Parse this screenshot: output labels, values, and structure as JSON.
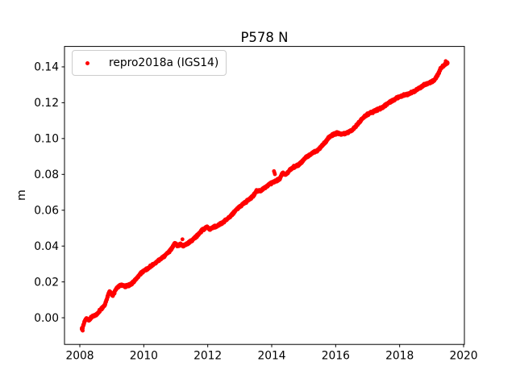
{
  "figure": {
    "title": "P578 N",
    "background": "#ffffff",
    "text_color": "#000000",
    "legend_border_color": "#cccccc"
  },
  "chart_data": {
    "type": "scatter",
    "title": "P578 N",
    "xlabel": "",
    "ylabel": "m",
    "grid": false,
    "legend_position": "upper left",
    "xlim": [
      2007.521,
      2020.025
    ],
    "ylim": [
      -0.01489,
      0.1514
    ],
    "xticks": [
      {
        "value": 2008,
        "label": "2008"
      },
      {
        "value": 2010,
        "label": "2010"
      },
      {
        "value": 2012,
        "label": "2012"
      },
      {
        "value": 2014,
        "label": "2014"
      },
      {
        "value": 2016,
        "label": "2016"
      },
      {
        "value": 2018,
        "label": "2018"
      },
      {
        "value": 2020,
        "label": "2020"
      }
    ],
    "yticks": [
      {
        "value": 0.0,
        "label": "0.00"
      },
      {
        "value": 0.02,
        "label": "0.02"
      },
      {
        "value": 0.04,
        "label": "0.04"
      },
      {
        "value": 0.06,
        "label": "0.06"
      },
      {
        "value": 0.08,
        "label": "0.08"
      },
      {
        "value": 0.1,
        "label": "0.10"
      },
      {
        "value": 0.12,
        "label": "0.12"
      },
      {
        "value": 0.14,
        "label": "0.14"
      }
    ],
    "series": [
      {
        "name": "repro2018a (IGS14)",
        "color": "#ff0000",
        "marker": "dot",
        "marker_size_px": 2.4,
        "x_start": 2008.06,
        "x_end": 2019.5,
        "n_points": 3000,
        "noise_m": 0.0007,
        "trend_m_per_yr": 0.013,
        "anchors": [
          [
            2008.06,
            -0.006
          ],
          [
            2008.08,
            -0.0068
          ],
          [
            2008.1,
            -0.0048
          ],
          [
            2008.15,
            -0.002
          ],
          [
            2008.19,
            -0.0006
          ],
          [
            2008.28,
            -0.0014
          ],
          [
            2008.4,
            0.0008
          ],
          [
            2008.53,
            0.0018
          ],
          [
            2008.66,
            0.0048
          ],
          [
            2008.78,
            0.0071
          ],
          [
            2008.87,
            0.0118
          ],
          [
            2008.93,
            0.0148
          ],
          [
            2009.03,
            0.0124
          ],
          [
            2009.16,
            0.0168
          ],
          [
            2009.29,
            0.0184
          ],
          [
            2009.41,
            0.0176
          ],
          [
            2009.58,
            0.0184
          ],
          [
            2009.71,
            0.0206
          ],
          [
            2009.92,
            0.0251
          ],
          [
            2010.04,
            0.0266
          ],
          [
            2010.17,
            0.028
          ],
          [
            2010.34,
            0.0303
          ],
          [
            2010.5,
            0.0325
          ],
          [
            2010.67,
            0.0348
          ],
          [
            2010.84,
            0.0378
          ],
          [
            2010.97,
            0.0416
          ],
          [
            2011.05,
            0.0402
          ],
          [
            2011.13,
            0.041
          ],
          [
            2011.26,
            0.0402
          ],
          [
            2011.39,
            0.0416
          ],
          [
            2011.51,
            0.0432
          ],
          [
            2011.68,
            0.0461
          ],
          [
            2011.85,
            0.0491
          ],
          [
            2011.98,
            0.0507
          ],
          [
            2012.06,
            0.0492
          ],
          [
            2012.18,
            0.0506
          ],
          [
            2012.31,
            0.0514
          ],
          [
            2012.44,
            0.0528
          ],
          [
            2012.61,
            0.0551
          ],
          [
            2012.76,
            0.0576
          ],
          [
            2012.9,
            0.0605
          ],
          [
            2013.02,
            0.0622
          ],
          [
            2013.15,
            0.0641
          ],
          [
            2013.32,
            0.0663
          ],
          [
            2013.45,
            0.0686
          ],
          [
            2013.53,
            0.071
          ],
          [
            2013.65,
            0.0707
          ],
          [
            2013.82,
            0.0731
          ],
          [
            2013.99,
            0.0753
          ],
          [
            2014.12,
            0.0762
          ],
          [
            2014.25,
            0.0776
          ],
          [
            2014.33,
            0.0806
          ],
          [
            2014.45,
            0.0799
          ],
          [
            2014.58,
            0.0828
          ],
          [
            2014.71,
            0.0843
          ],
          [
            2014.83,
            0.0852
          ],
          [
            2014.96,
            0.0874
          ],
          [
            2015.08,
            0.0896
          ],
          [
            2015.25,
            0.0918
          ],
          [
            2015.42,
            0.0931
          ],
          [
            2015.55,
            0.0956
          ],
          [
            2015.67,
            0.0978
          ],
          [
            2015.8,
            0.1008
          ],
          [
            2015.92,
            0.1023
          ],
          [
            2016.05,
            0.1031
          ],
          [
            2016.18,
            0.1024
          ],
          [
            2016.35,
            0.1032
          ],
          [
            2016.51,
            0.1046
          ],
          [
            2016.68,
            0.1076
          ],
          [
            2016.8,
            0.1105
          ],
          [
            2016.89,
            0.1122
          ],
          [
            2017.02,
            0.1138
          ],
          [
            2017.19,
            0.1152
          ],
          [
            2017.31,
            0.1162
          ],
          [
            2017.44,
            0.1172
          ],
          [
            2017.56,
            0.1188
          ],
          [
            2017.69,
            0.1202
          ],
          [
            2017.82,
            0.1216
          ],
          [
            2017.94,
            0.1229
          ],
          [
            2018.11,
            0.1241
          ],
          [
            2018.28,
            0.1249
          ],
          [
            2018.45,
            0.1263
          ],
          [
            2018.62,
            0.1281
          ],
          [
            2018.78,
            0.13
          ],
          [
            2018.95,
            0.1312
          ],
          [
            2019.08,
            0.1324
          ],
          [
            2019.16,
            0.1345
          ],
          [
            2019.29,
            0.1392
          ],
          [
            2019.41,
            0.1412
          ],
          [
            2019.5,
            0.1421
          ]
        ],
        "outliers": [
          [
            2014.07,
            0.0818
          ],
          [
            2014.085,
            0.081
          ],
          [
            2014.1,
            0.0801
          ],
          [
            2011.21,
            0.0438
          ],
          [
            2019.44,
            0.1432
          ],
          [
            2008.09,
            -0.0072
          ]
        ]
      }
    ]
  }
}
